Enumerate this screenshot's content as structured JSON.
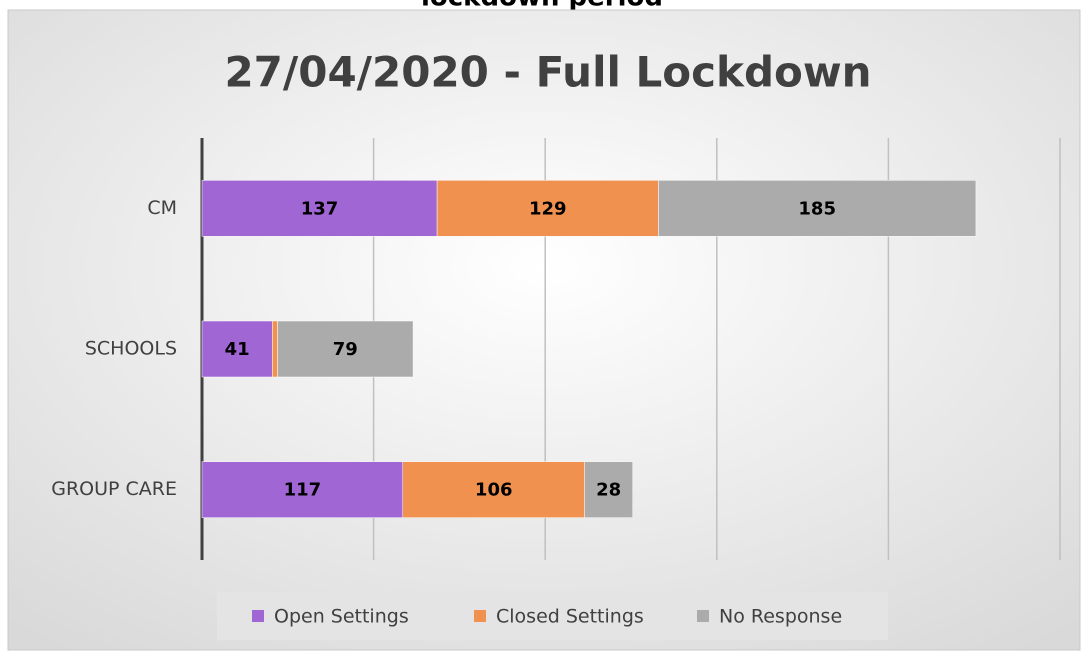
{
  "heading": "lockdown period",
  "chart_data": {
    "type": "stacked-barh",
    "title": "27/04/2020 - Full Lockdown",
    "categories": [
      "CM",
      "SCHOOLS",
      "GROUP CARE"
    ],
    "series": [
      {
        "name": "Open Settings",
        "color": "#a066d3",
        "values": [
          137,
          41,
          117
        ]
      },
      {
        "name": "Closed Settings",
        "color": "#f0914f",
        "values": [
          129,
          3,
          106
        ]
      },
      {
        "name": "No Response",
        "color": "#ababab",
        "values": [
          185,
          79,
          28
        ]
      }
    ],
    "xlim": [
      0,
      500
    ],
    "xticks": [
      0,
      100,
      200,
      300,
      400,
      500
    ],
    "grid": true,
    "legend": "bottom"
  }
}
